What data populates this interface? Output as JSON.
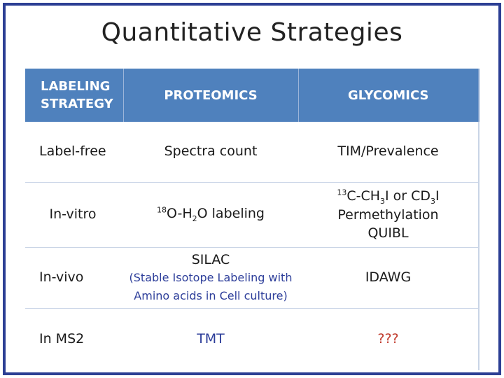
{
  "title": "Quantitative Strategies",
  "table": {
    "headers": {
      "strategy_line1": "LABELING",
      "strategy_line2": "STRATEGY",
      "proteomics": "PROTEOMICS",
      "glycomics": "GLYCOMICS"
    },
    "rows": [
      {
        "strategy": "Label-free",
        "proteomics": "Spectra count",
        "glycomics": "TIM/Prevalence"
      },
      {
        "strategy": "In-vitro",
        "proteomics": {
          "sup_iso": "18",
          "text_a": "O-H",
          "sub_n": "2",
          "text_b": "O labeling"
        },
        "glycomics": {
          "sup_iso": "13",
          "text_a": "C-CH",
          "sub_a": "3",
          "text_b": "I or CD",
          "sub_b": "3",
          "text_c": "I",
          "line2": "Permethylation",
          "line3": "QUIBL"
        }
      },
      {
        "strategy": "In-vivo",
        "proteomics": {
          "main": "SILAC",
          "detail_line1": "(Stable Isotope Labeling with",
          "detail_line2": "Amino acids in Cell culture)"
        },
        "glycomics": "IDAWG"
      },
      {
        "strategy": "In MS2",
        "proteomics": "TMT",
        "glycomics": "???"
      }
    ]
  },
  "colors": {
    "frame_border": "#2c3f94",
    "header_bg": "#4f81bd",
    "accent_blue": "#2d3e9a",
    "accent_red": "#c0392b"
  }
}
